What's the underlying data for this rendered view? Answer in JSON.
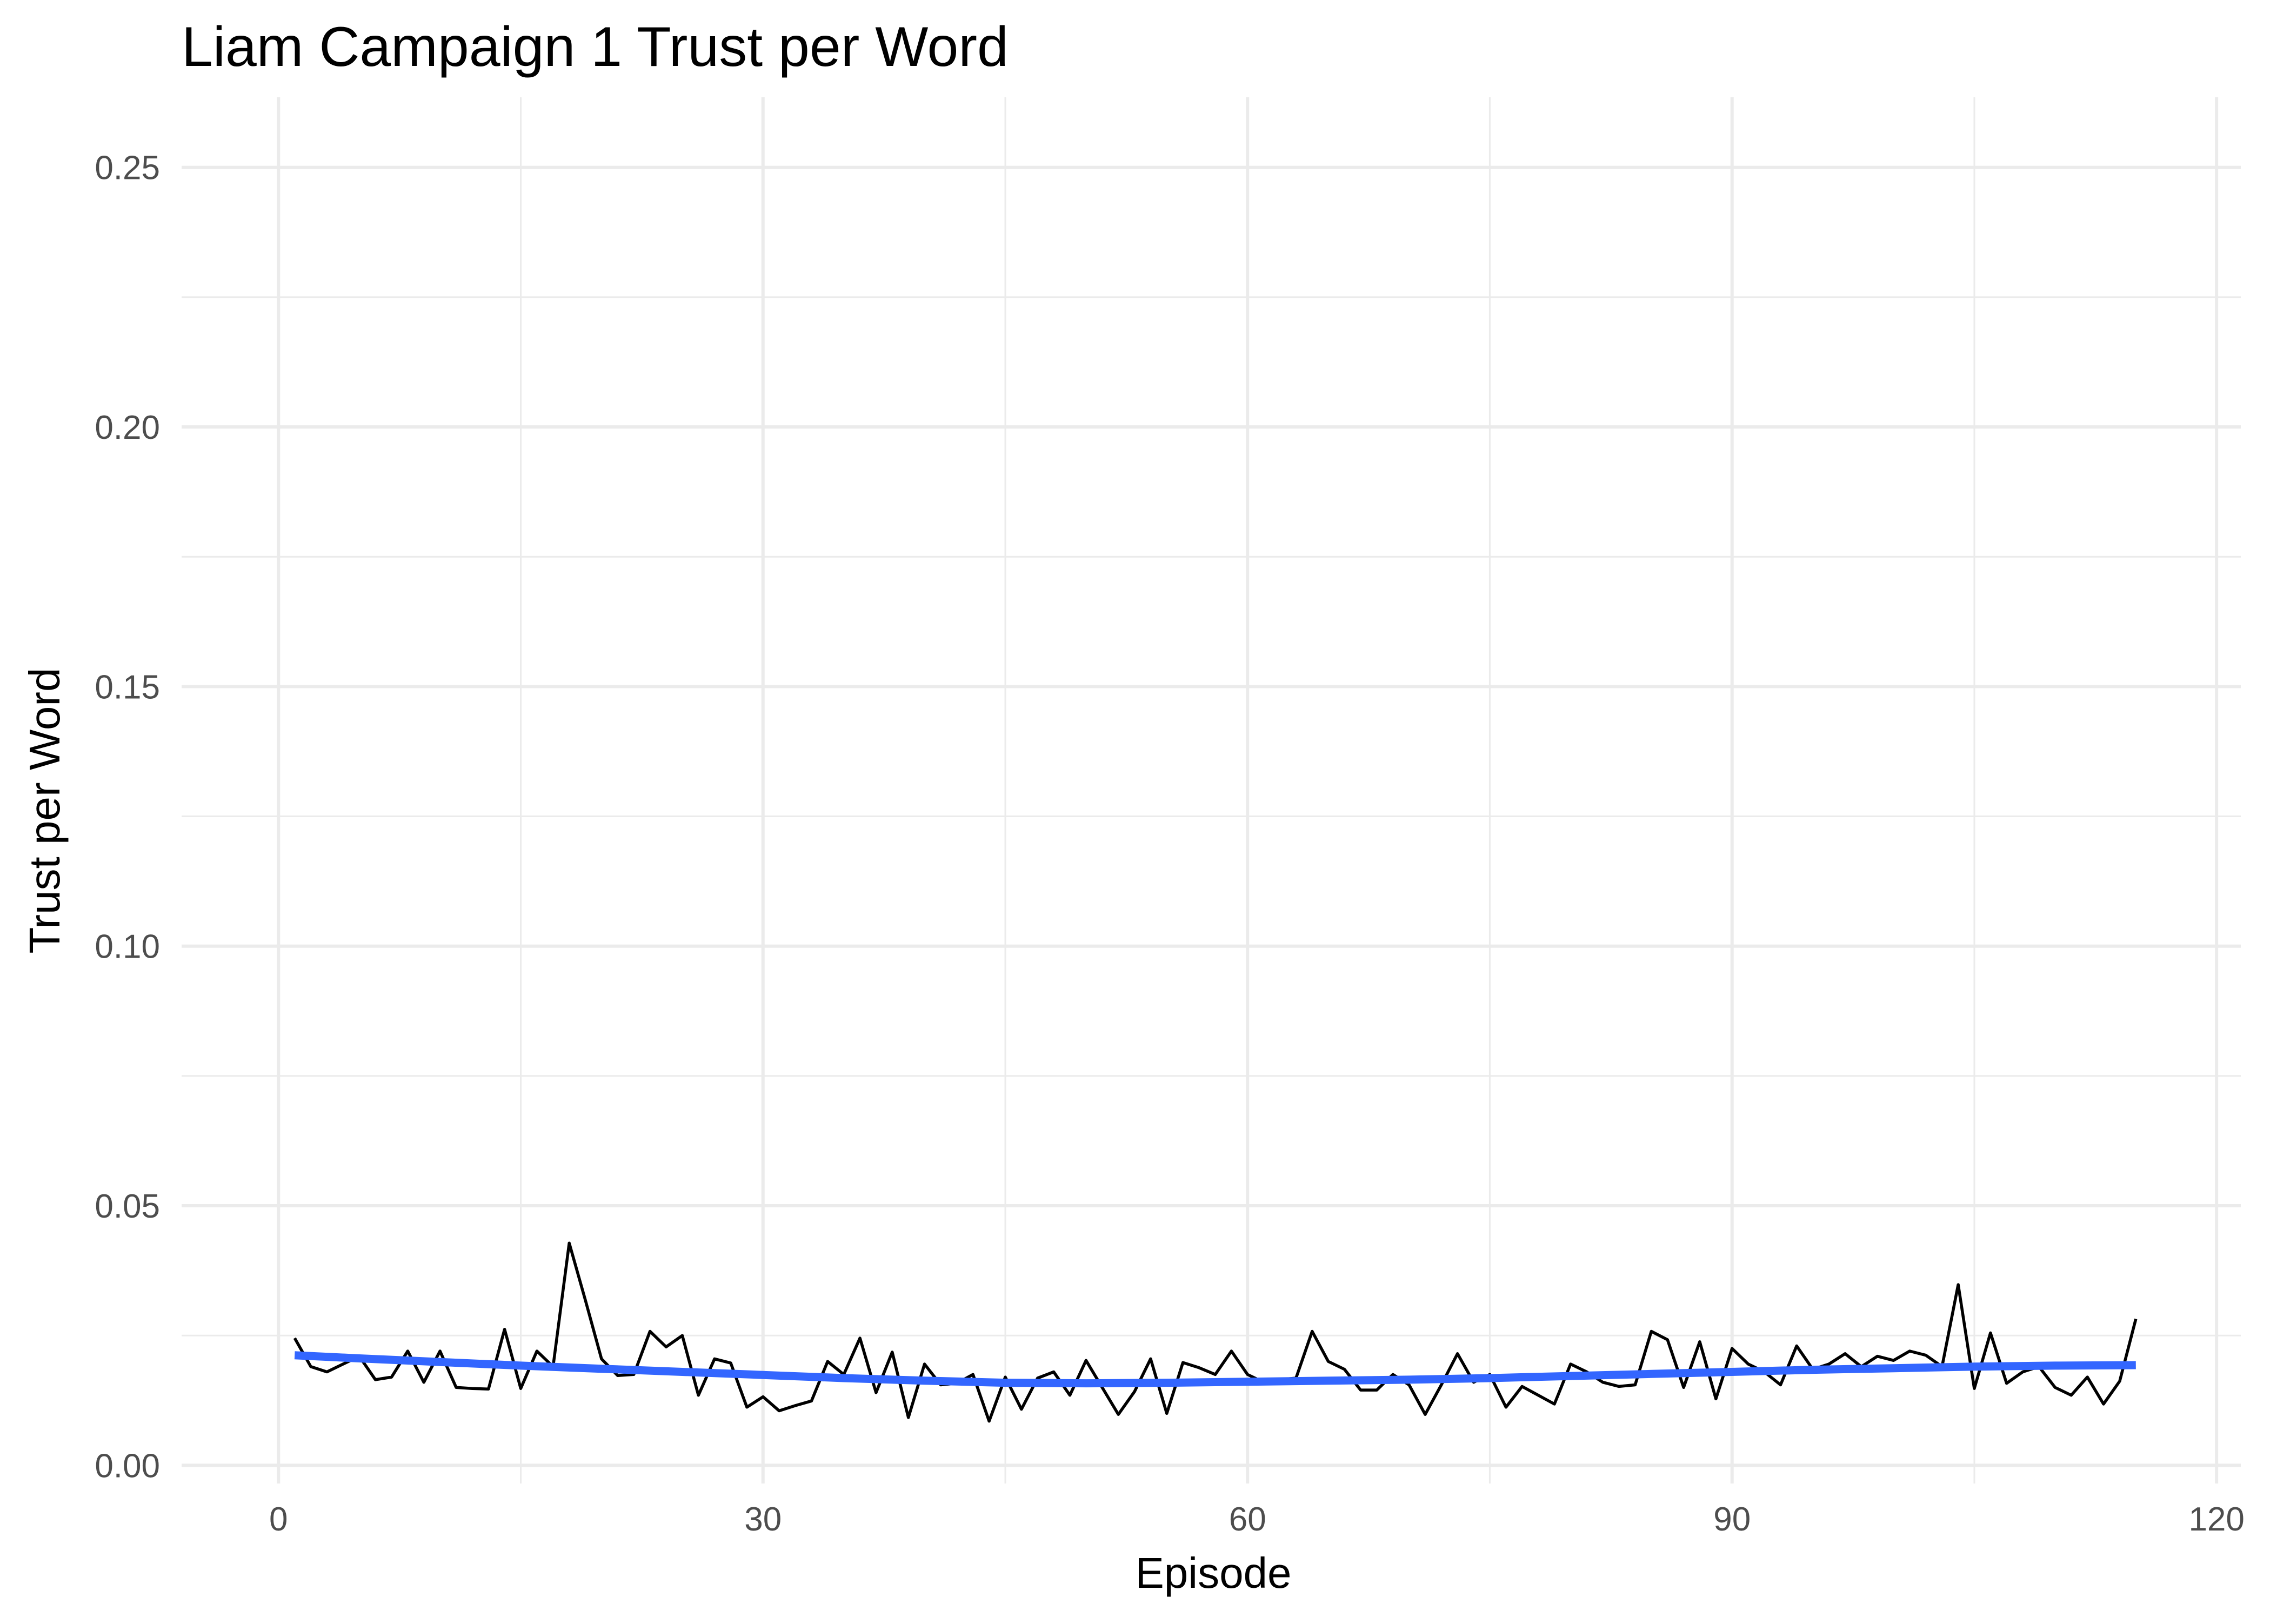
{
  "chart_data": {
    "type": "line",
    "title": "Liam Campaign 1 Trust per Word",
    "xlabel": "Episode",
    "ylabel": "Trust per Word",
    "xlim": [
      -6,
      121.5
    ],
    "ylim": [
      -0.0035,
      0.2635
    ],
    "x_ticks": [
      0,
      30,
      60,
      90,
      120
    ],
    "x_tick_labels": [
      "0",
      "30",
      "60",
      "90",
      "120"
    ],
    "y_ticks": [
      0.0,
      0.05,
      0.1,
      0.15,
      0.2,
      0.25
    ],
    "y_tick_labels": [
      "0.00",
      "0.05",
      "0.10",
      "0.15",
      "0.20",
      "0.25"
    ],
    "grid": true,
    "legend": "none",
    "colors": {
      "raw_line": "#000000",
      "smooth_line": "#3366ff",
      "grid": "#ebebeb"
    },
    "series": [
      {
        "x": [
          1,
          2,
          3,
          4,
          5,
          6,
          7,
          8,
          9,
          10,
          11,
          12,
          13,
          14,
          15,
          16,
          17,
          18,
          19,
          20,
          21,
          22,
          23,
          24,
          25,
          26,
          27,
          28,
          29,
          30,
          31,
          32,
          33,
          34,
          35,
          36,
          37,
          38,
          39,
          40,
          41,
          42,
          43,
          44,
          45,
          46,
          47,
          48,
          49,
          50,
          51,
          52,
          53,
          54,
          55,
          56,
          57,
          58,
          59,
          60,
          61,
          62,
          63,
          64,
          65,
          66,
          67,
          68,
          69,
          70,
          71,
          72,
          73,
          74,
          75,
          76,
          77,
          78,
          79,
          80,
          81,
          82,
          83,
          84,
          85,
          86,
          87,
          88,
          89,
          90,
          91,
          92,
          93,
          94,
          95,
          96,
          97,
          98,
          99,
          100,
          101,
          102,
          103,
          104,
          105,
          106,
          107,
          108,
          109,
          110,
          111,
          112,
          113,
          114,
          115
        ],
        "values": [
          0.0245,
          0.019,
          0.018,
          0.0195,
          0.021,
          0.0165,
          0.017,
          0.022,
          0.016,
          0.022,
          0.015,
          0.0148,
          0.0147,
          0.0262,
          0.0148,
          0.022,
          0.019,
          0.0428,
          0.0318,
          0.0205,
          0.0173,
          0.0175,
          0.0258,
          0.0228,
          0.025,
          0.0135,
          0.0205,
          0.0197,
          0.0112,
          0.0132,
          0.0105,
          0.0115,
          0.0124,
          0.02,
          0.0175,
          0.0245,
          0.014,
          0.0218,
          0.0092,
          0.0195,
          0.0155,
          0.0158,
          0.0175,
          0.0085,
          0.017,
          0.0108,
          0.0168,
          0.018,
          0.0135,
          0.0202,
          0.015,
          0.0098,
          0.0142,
          0.0205,
          0.01,
          0.0198,
          0.0188,
          0.0175,
          0.022,
          0.0175,
          0.016,
          0.0165,
          0.0168,
          0.0258,
          0.02,
          0.0185,
          0.0145,
          0.0145,
          0.0175,
          0.0155,
          0.0098,
          0.0155,
          0.0215,
          0.016,
          0.0175,
          0.0112,
          0.0152,
          0.0135,
          0.0118,
          0.0195,
          0.018,
          0.016,
          0.0152,
          0.0155,
          0.0258,
          0.0242,
          0.015,
          0.0238,
          0.0128,
          0.0225,
          0.0195,
          0.018,
          0.0155,
          0.023,
          0.0185,
          0.0195,
          0.0215,
          0.019,
          0.021,
          0.0202,
          0.022,
          0.0212,
          0.019,
          0.0348,
          0.0148,
          0.0255,
          0.0158,
          0.018,
          0.019,
          0.015,
          0.0135,
          0.017,
          0.0118,
          0.0162,
          0.0282
        ]
      },
      {
        "x": [
          1,
          5,
          10,
          15,
          20,
          25,
          30,
          35,
          40,
          45,
          50,
          55,
          60,
          65,
          70,
          75,
          80,
          85,
          90,
          95,
          100,
          105,
          110,
          115
        ],
        "values": [
          0.0212,
          0.0206,
          0.0199,
          0.0192,
          0.0186,
          0.018,
          0.0174,
          0.0168,
          0.0163,
          0.0159,
          0.0158,
          0.0159,
          0.0161,
          0.0163,
          0.0165,
          0.0168,
          0.0172,
          0.0176,
          0.018,
          0.0184,
          0.0187,
          0.019,
          0.0192,
          0.0193
        ]
      }
    ]
  }
}
